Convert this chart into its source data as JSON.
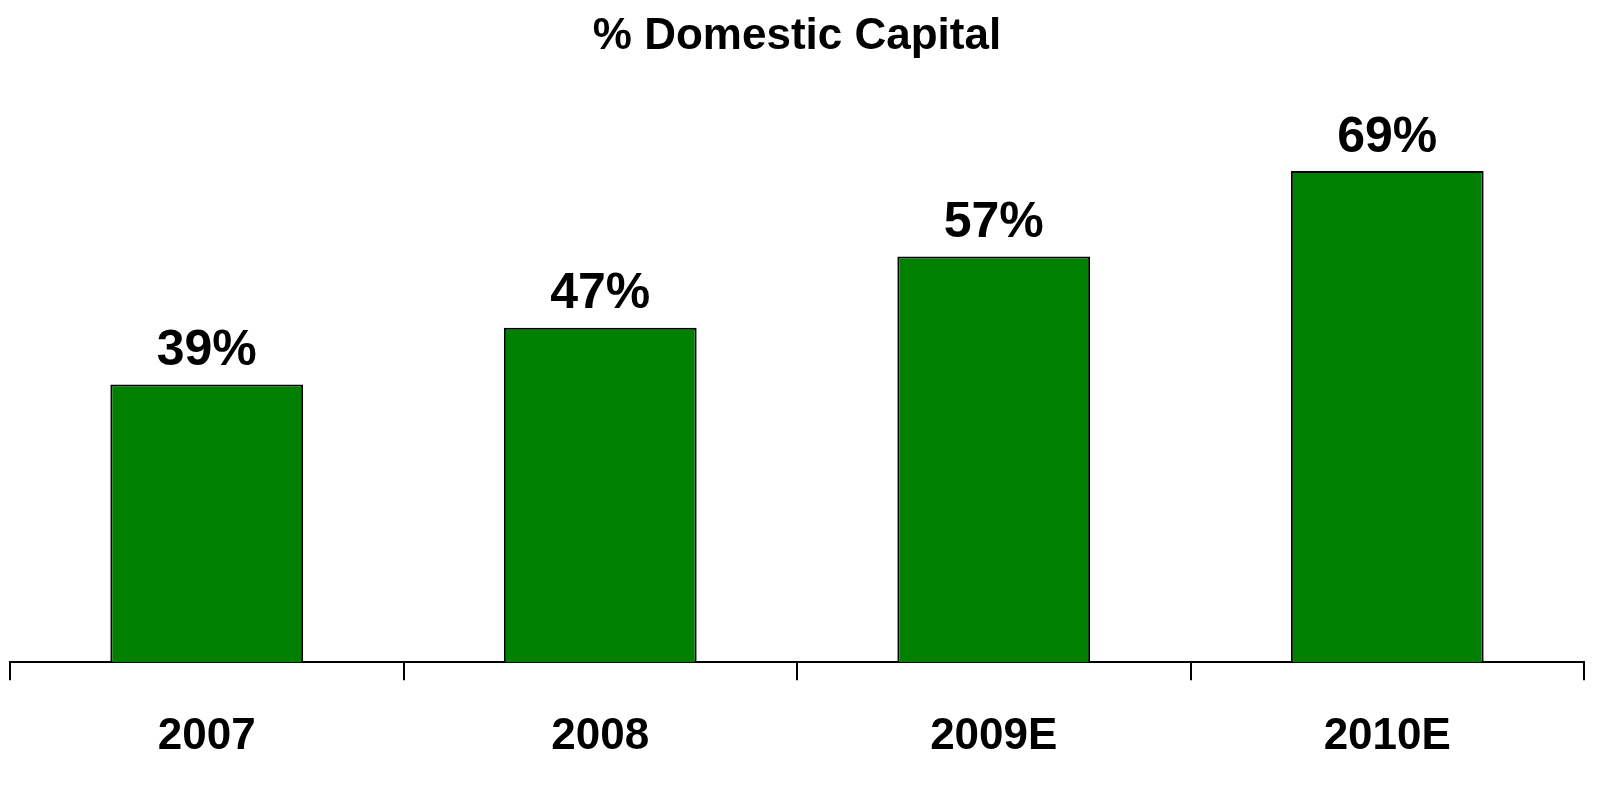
{
  "chart_data": {
    "type": "bar",
    "title": "% Domestic Capital",
    "categories": [
      "2007",
      "2008",
      "2009E",
      "2010E"
    ],
    "values": [
      39,
      47,
      57,
      69
    ],
    "value_labels": [
      "39%",
      "47%",
      "57%",
      "69%"
    ],
    "color": "#008000",
    "grid": false,
    "legend": false,
    "tick_labels": "x"
  }
}
